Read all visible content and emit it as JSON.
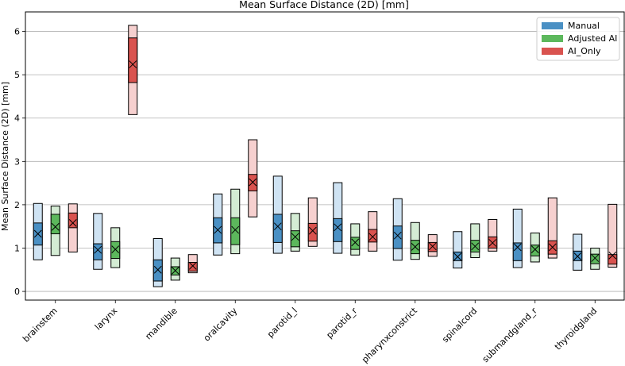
{
  "chart_data": {
    "type": "box",
    "title": "Mean Surface Distance (2D) [mm]",
    "ylabel": "Mean Surface Distance (2D) [mm]",
    "xlabel": "",
    "ylim": [
      -0.2,
      6.45
    ],
    "yticks": [
      0,
      1,
      2,
      3,
      4,
      5,
      6
    ],
    "grid": "y",
    "legend": "top-right",
    "categories": [
      "brainstem",
      "larynx",
      "mandible",
      "oralcavity",
      "parotid_l",
      "parotid_r",
      "pharynxconstrict",
      "spinalcord",
      "submandgland_r",
      "thyroidgland"
    ],
    "series": [
      {
        "name": "Manual",
        "color": "#4a90c4",
        "light": "#cfe3f3",
        "boxes": [
          {
            "whislo": 0.73,
            "q1": 1.07,
            "mean": 1.33,
            "q3": 1.58,
            "whishi": 2.03
          },
          {
            "whislo": 0.51,
            "q1": 0.73,
            "mean": 0.96,
            "q3": 1.1,
            "whishi": 1.8
          },
          {
            "whislo": 0.11,
            "q1": 0.24,
            "mean": 0.5,
            "q3": 0.73,
            "whishi": 1.22
          },
          {
            "whislo": 0.84,
            "q1": 1.12,
            "mean": 1.42,
            "q3": 1.7,
            "whishi": 2.25
          },
          {
            "whislo": 0.88,
            "q1": 1.13,
            "mean": 1.5,
            "q3": 1.78,
            "whishi": 2.66
          },
          {
            "whislo": 0.88,
            "q1": 1.15,
            "mean": 1.48,
            "q3": 1.68,
            "whishi": 2.51
          },
          {
            "whislo": 0.72,
            "q1": 0.99,
            "mean": 1.29,
            "q3": 1.51,
            "whishi": 2.14
          },
          {
            "whislo": 0.54,
            "q1": 0.71,
            "mean": 0.8,
            "q3": 0.91,
            "whishi": 1.38
          },
          {
            "whislo": 0.55,
            "q1": 0.71,
            "mean": 1.02,
            "q3": 1.12,
            "whishi": 1.9
          },
          {
            "whislo": 0.49,
            "q1": 0.71,
            "mean": 0.81,
            "q3": 0.93,
            "whishi": 1.32
          }
        ]
      },
      {
        "name": "Adjusted AI",
        "color": "#5cb85c",
        "light": "#d4ecd4",
        "boxes": [
          {
            "whislo": 0.83,
            "q1": 1.33,
            "mean": 1.49,
            "q3": 1.78,
            "whishi": 1.97
          },
          {
            "whislo": 0.55,
            "q1": 0.76,
            "mean": 0.97,
            "q3": 1.15,
            "whishi": 1.47
          },
          {
            "whislo": 0.26,
            "q1": 0.38,
            "mean": 0.48,
            "q3": 0.57,
            "whishi": 0.77
          },
          {
            "whislo": 0.87,
            "q1": 1.08,
            "mean": 1.42,
            "q3": 1.7,
            "whishi": 2.36
          },
          {
            "whislo": 0.93,
            "q1": 1.03,
            "mean": 1.26,
            "q3": 1.4,
            "whishi": 1.8
          },
          {
            "whislo": 0.84,
            "q1": 0.97,
            "mean": 1.13,
            "q3": 1.25,
            "whishi": 1.56
          },
          {
            "whislo": 0.74,
            "q1": 0.87,
            "mean": 1.03,
            "q3": 1.18,
            "whishi": 1.59
          },
          {
            "whislo": 0.78,
            "q1": 0.91,
            "mean": 1.04,
            "q3": 1.18,
            "whishi": 1.56
          },
          {
            "whislo": 0.68,
            "q1": 0.82,
            "mean": 0.97,
            "q3": 1.07,
            "whishi": 1.35
          },
          {
            "whislo": 0.51,
            "q1": 0.64,
            "mean": 0.77,
            "q3": 0.86,
            "whishi": 1.0
          }
        ]
      },
      {
        "name": "AI_Only",
        "color": "#d9534f",
        "light": "#f6d0cf",
        "boxes": [
          {
            "whislo": 0.91,
            "q1": 1.47,
            "mean": 1.58,
            "q3": 1.81,
            "whishi": 2.02
          },
          {
            "whislo": 4.08,
            "q1": 4.82,
            "mean": 5.24,
            "q3": 5.85,
            "whishi": 6.14
          },
          {
            "whislo": 0.43,
            "q1": 0.47,
            "mean": 0.59,
            "q3": 0.67,
            "whishi": 0.85
          },
          {
            "whislo": 1.72,
            "q1": 2.32,
            "mean": 2.52,
            "q3": 2.7,
            "whishi": 3.5
          },
          {
            "whislo": 1.04,
            "q1": 1.16,
            "mean": 1.4,
            "q3": 1.57,
            "whishi": 2.16
          },
          {
            "whislo": 0.93,
            "q1": 1.14,
            "mean": 1.26,
            "q3": 1.43,
            "whishi": 1.84
          },
          {
            "whislo": 0.81,
            "q1": 0.92,
            "mean": 1.04,
            "q3": 1.13,
            "whishi": 1.31
          },
          {
            "whislo": 0.93,
            "q1": 1.0,
            "mean": 1.12,
            "q3": 1.26,
            "whishi": 1.66
          },
          {
            "whislo": 0.77,
            "q1": 0.86,
            "mean": 1.02,
            "q3": 1.17,
            "whishi": 2.16
          },
          {
            "whislo": 0.56,
            "q1": 0.63,
            "mean": 0.83,
            "q3": 0.85,
            "whishi": 2.01
          }
        ]
      }
    ]
  }
}
